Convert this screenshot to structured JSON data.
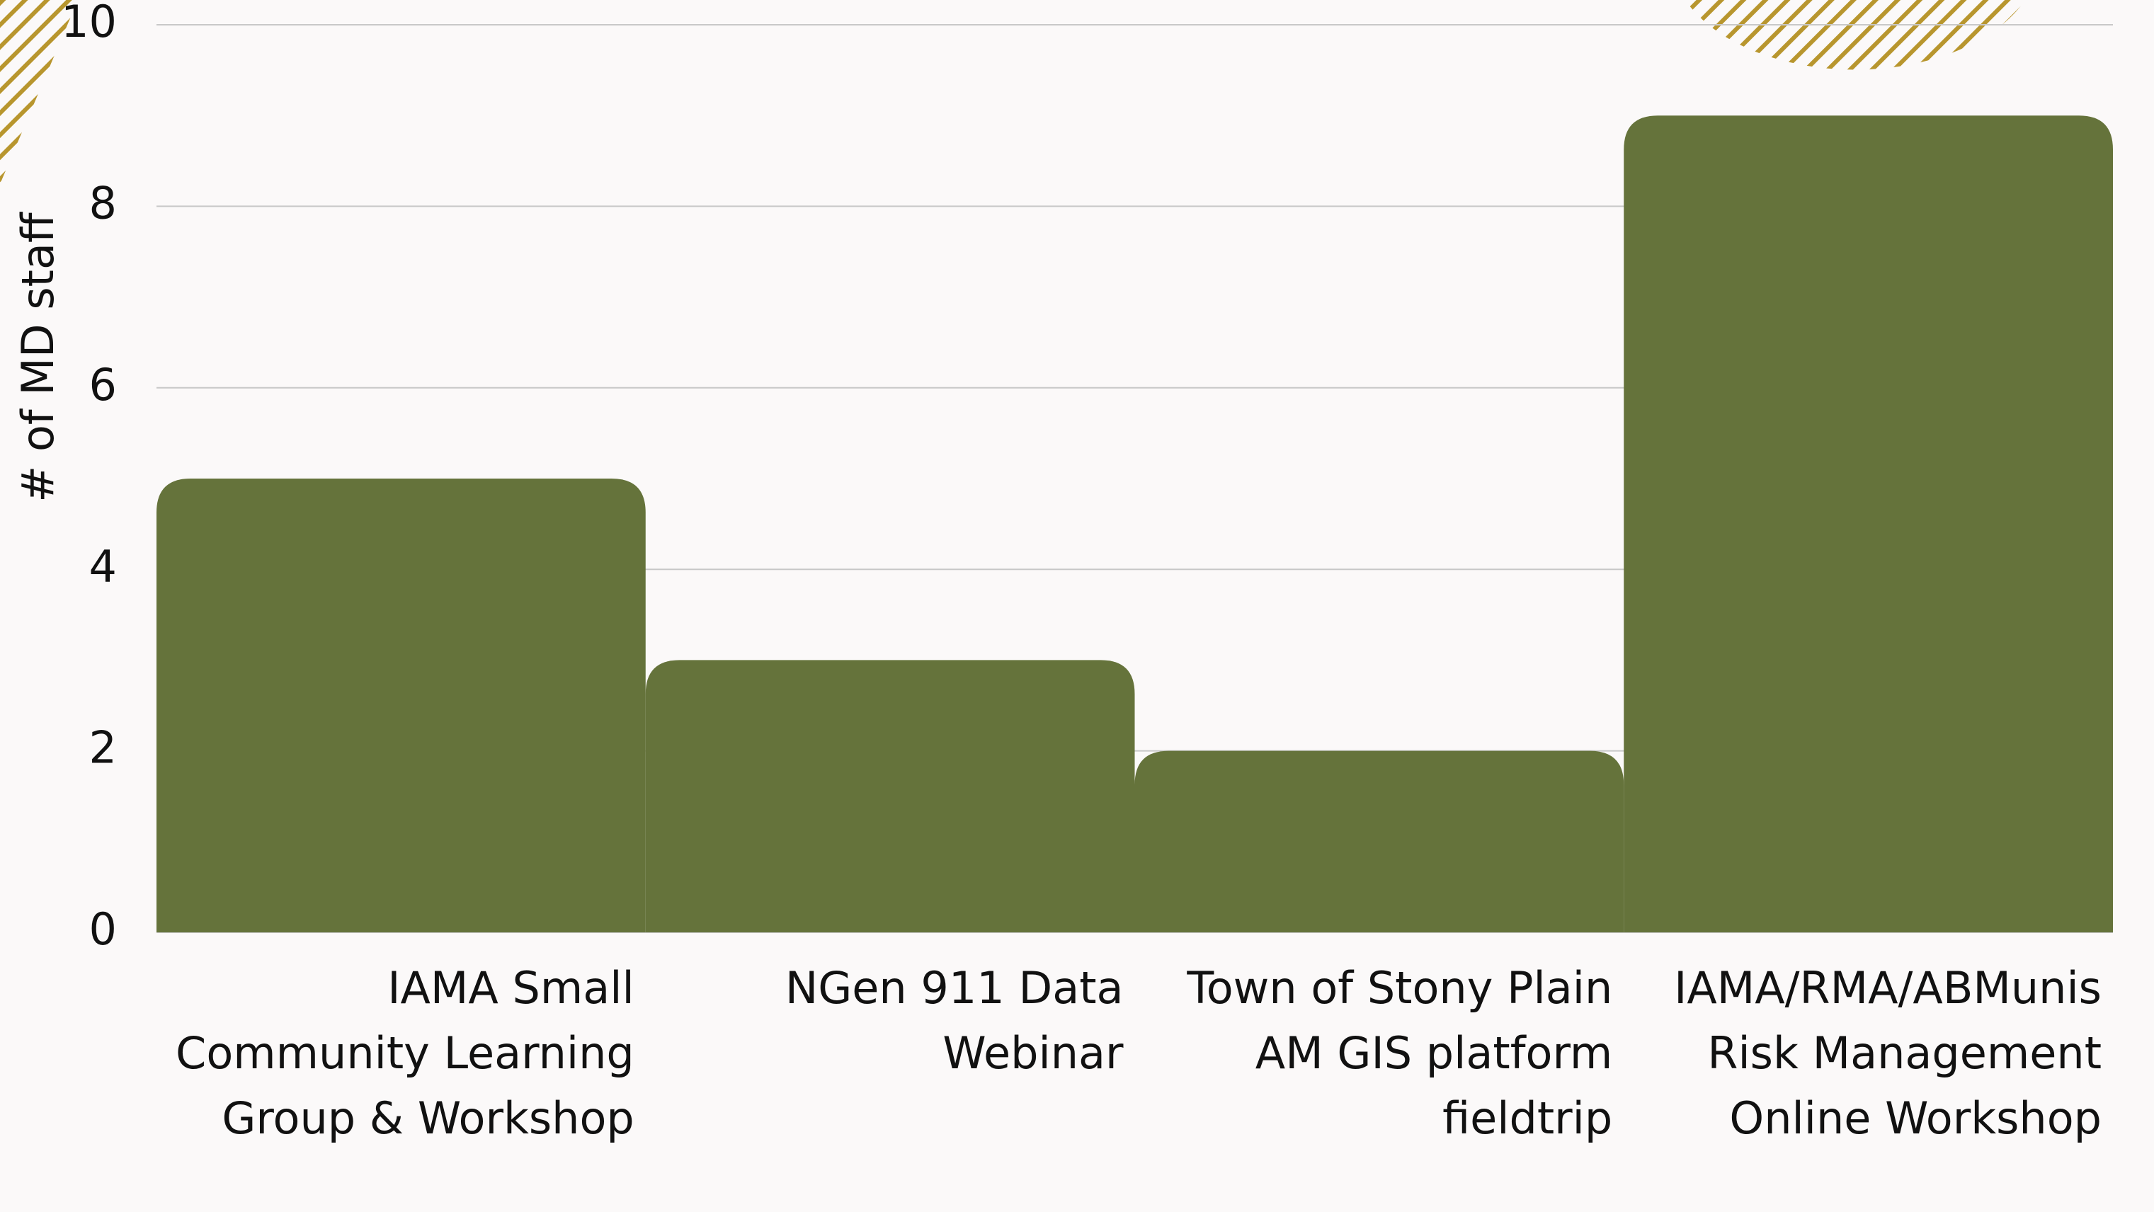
{
  "chart_data": {
    "type": "bar",
    "y_label": "# of MD staff",
    "categories": [
      "IAMA Small Community Learning Group & Workshop",
      "NGen 911 Data Webinar",
      "Town of Stony Plain AM GIS platform fieldtrip",
      "IAMA/RMA/ABMunis Risk Management Online Workshop"
    ],
    "values": [
      5,
      3,
      2,
      9
    ],
    "color": "#65733b",
    "ylim": [
      0,
      10
    ],
    "yticks": [
      0,
      2,
      4,
      6,
      8,
      10
    ],
    "grid": true
  }
}
